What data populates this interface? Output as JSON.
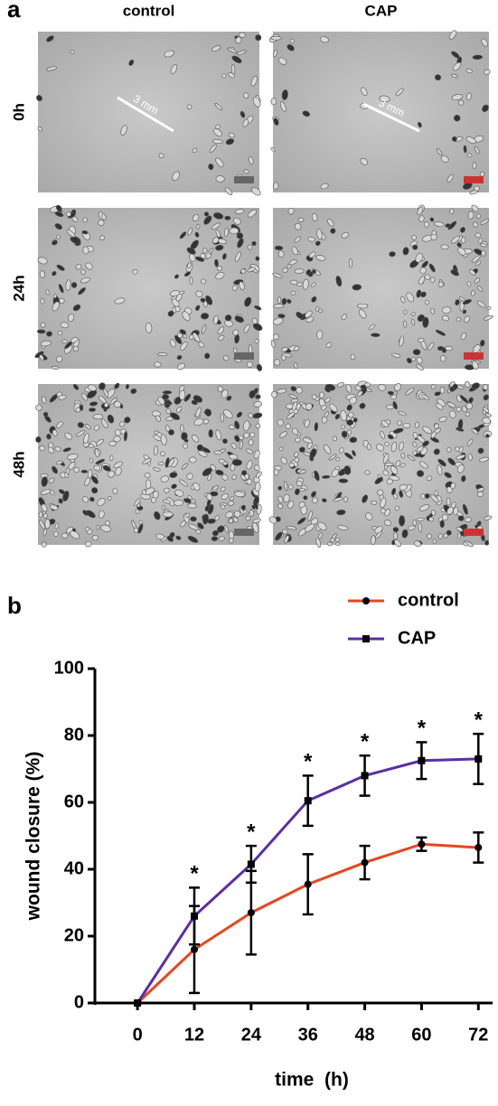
{
  "panel_a": {
    "label": "a",
    "columns": [
      "control",
      "CAP"
    ],
    "rows": [
      "0h",
      "24h",
      "48h"
    ],
    "scale_label": "3 mm"
  },
  "chart_data": {
    "panel_label": "b",
    "type": "line",
    "x_label": "time  (h)",
    "y_label": "wound closure (%)",
    "x": [
      0,
      12,
      24,
      36,
      48,
      60,
      72
    ],
    "series": [
      {
        "name": "control",
        "color": "#e8461e",
        "marker": "circle",
        "values": [
          0,
          16,
          27,
          35.5,
          42,
          47.5,
          46.5
        ],
        "errors": [
          0,
          13,
          12.5,
          9,
          5,
          2,
          4.5
        ]
      },
      {
        "name": "CAP",
        "color": "#5b2ea6",
        "marker": "square",
        "values": [
          0,
          26,
          41.5,
          60.5,
          68,
          72.5,
          73
        ],
        "errors": [
          0,
          8.5,
          5.5,
          7.5,
          6,
          5.5,
          7.5
        ]
      }
    ],
    "annotations": [
      {
        "x": 12,
        "text": "*"
      },
      {
        "x": 24,
        "text": "*"
      },
      {
        "x": 36,
        "text": "*"
      },
      {
        "x": 48,
        "text": "*"
      },
      {
        "x": 60,
        "text": "*"
      },
      {
        "x": 72,
        "text": "*"
      }
    ],
    "xlim": [
      -9,
      75
    ],
    "ylim": [
      0,
      100
    ],
    "xticks": [
      0,
      12,
      24,
      36,
      48,
      60,
      72
    ],
    "yticks": [
      0,
      20,
      40,
      60,
      80,
      100
    ]
  }
}
